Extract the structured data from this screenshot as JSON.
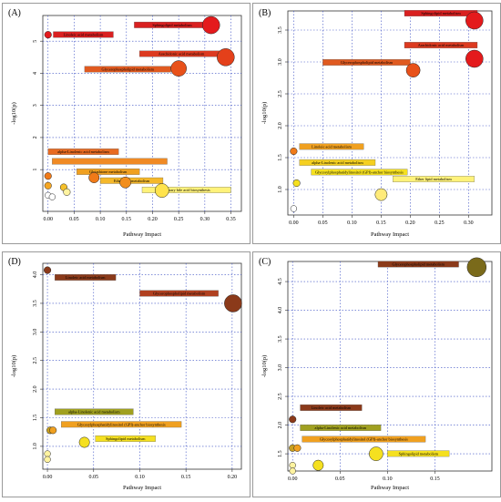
{
  "chart_data": [
    {
      "panel_label": "(A)",
      "type": "scatter",
      "xlabel": "Pathway Impact",
      "ylabel": "-log10(p)",
      "xlim": [
        -0.01,
        0.37
      ],
      "ylim": [
        -0.3,
        5.8
      ],
      "xticks": [
        0.0,
        0.05,
        0.1,
        0.15,
        0.2,
        0.25,
        0.3,
        0.35
      ],
      "xtick_labels": [
        "0.00",
        "0.05",
        "0.10",
        "0.15",
        "0.20",
        "0.25",
        "0.30",
        "0.35"
      ],
      "yticks": [
        1,
        2,
        3,
        4,
        5
      ],
      "ytick_labels": [
        "1",
        "2",
        "3",
        "4",
        "5"
      ],
      "points": [
        {
          "x": 0.312,
          "y": 5.5,
          "size": 5,
          "color": "#e41a1c"
        },
        {
          "x": 0.0,
          "y": 5.2,
          "size": 2,
          "color": "#e41a1c"
        },
        {
          "x": 0.34,
          "y": 4.5,
          "size": 5,
          "color": "#e4401a"
        },
        {
          "x": 0.25,
          "y": 4.15,
          "size": 4.5,
          "color": "#e8511a"
        },
        {
          "x": 0.0,
          "y": 0.8,
          "size": 2,
          "color": "#f07a18"
        },
        {
          "x": 0.0,
          "y": 0.5,
          "size": 2,
          "color": "#f5a623"
        },
        {
          "x": 0.088,
          "y": 0.75,
          "size": 3,
          "color": "#f07a18"
        },
        {
          "x": 0.148,
          "y": 0.6,
          "size": 3.2,
          "color": "#f28e1c"
        },
        {
          "x": 0.218,
          "y": 0.35,
          "size": 4,
          "color": "#ffe34d"
        },
        {
          "x": 0.03,
          "y": 0.45,
          "size": 2,
          "color": "#f5c02a"
        },
        {
          "x": 0.036,
          "y": 0.3,
          "size": 2,
          "color": "#fff3a0"
        },
        {
          "x": 0.0,
          "y": 0.2,
          "size": 1.8,
          "color": "#ffffff"
        },
        {
          "x": 0.008,
          "y": 0.15,
          "size": 1.8,
          "color": "#ffffff"
        }
      ],
      "labels": [
        {
          "text": "Sphingolipid metabolism",
          "x": 0.165,
          "y": 5.5,
          "w": 0.145,
          "color": "#d92020"
        },
        {
          "text": "Linoleic acid metabolism",
          "x": 0.01,
          "y": 5.2,
          "w": 0.115,
          "color": "#d92020"
        },
        {
          "text": "Arachidonic acid metabolism",
          "x": 0.175,
          "y": 4.6,
          "w": 0.16,
          "color": "#dc3a20"
        },
        {
          "text": "Glycerophospholipid metabolism",
          "x": 0.07,
          "y": 4.12,
          "w": 0.165,
          "color": "#e05a20"
        },
        {
          "text": "alpha-Linolenic acid metabolism",
          "x": 0.0,
          "y": 1.55,
          "w": 0.135,
          "color": "#e86a20"
        },
        {
          "text": "",
          "x": 0.008,
          "y": 1.25,
          "w": 0.22,
          "color": "#f08a24"
        },
        {
          "text": "Glutathione metabolism",
          "x": 0.055,
          "y": 0.93,
          "w": 0.12,
          "color": "#f0a020"
        },
        {
          "text": "Ether lipid metabolism",
          "x": 0.1,
          "y": 0.65,
          "w": 0.12,
          "color": "#f5b82a"
        },
        {
          "text": "Primary bile acid biosynthesis",
          "x": 0.18,
          "y": 0.36,
          "w": 0.17,
          "color": "#fff27a"
        }
      ]
    },
    {
      "panel_label": "(B)",
      "type": "scatter",
      "xlabel": "Pathway Impact",
      "ylabel": "-log10(p)",
      "xlim": [
        -0.01,
        0.34
      ],
      "ylim": [
        0.6,
        3.8
      ],
      "xticks": [
        0.0,
        0.05,
        0.1,
        0.15,
        0.2,
        0.25,
        0.3
      ],
      "xtick_labels": [
        "0.00",
        "0.05",
        "0.10",
        "0.15",
        "0.20",
        "0.25",
        "0.30"
      ],
      "yticks": [
        1.0,
        1.5,
        2.0,
        2.5,
        3.0,
        3.5
      ],
      "ytick_labels": [
        "1.0",
        "1.5",
        "2.0",
        "2.5",
        "3.0",
        "3.5"
      ],
      "points": [
        {
          "x": 0.31,
          "y": 3.65,
          "size": 5,
          "color": "#e41a1c"
        },
        {
          "x": 0.31,
          "y": 3.05,
          "size": 5,
          "color": "#e41a1c"
        },
        {
          "x": 0.205,
          "y": 2.87,
          "size": 4,
          "color": "#e8511a"
        },
        {
          "x": 0.0,
          "y": 1.6,
          "size": 2,
          "color": "#f07a18"
        },
        {
          "x": 0.005,
          "y": 1.1,
          "size": 2,
          "color": "#f5e020"
        },
        {
          "x": 0.15,
          "y": 0.92,
          "size": 3.5,
          "color": "#ffeb7a"
        },
        {
          "x": 0.0,
          "y": 0.7,
          "size": 1.8,
          "color": "#ffffff"
        }
      ],
      "labels": [
        {
          "text": "Sphingolipid metabolism",
          "x": 0.19,
          "y": 3.76,
          "w": 0.125,
          "color": "#d92020"
        },
        {
          "text": "Arachidonic acid metabolism",
          "x": 0.19,
          "y": 3.26,
          "w": 0.125,
          "color": "#dc3a20"
        },
        {
          "text": "Glycerophospholipid metabolism",
          "x": 0.05,
          "y": 2.99,
          "w": 0.15,
          "color": "#e05a20"
        },
        {
          "text": "Linoleic acid metabolism",
          "x": 0.01,
          "y": 1.67,
          "w": 0.11,
          "color": "#f0a020"
        },
        {
          "text": "alpha-Linolenic acid metabolism",
          "x": 0.01,
          "y": 1.42,
          "w": 0.13,
          "color": "#f5d020"
        },
        {
          "text": "Glycosylphosphatidylinositol (GPI)-anchor biosynthesis",
          "x": 0.03,
          "y": 1.27,
          "w": 0.165,
          "color": "#f5e020"
        },
        {
          "text": "Ether lipid metabolism",
          "x": 0.17,
          "y": 1.16,
          "w": 0.14,
          "color": "#fff27a"
        }
      ]
    },
    {
      "panel_label": "(D)",
      "type": "scatter",
      "xlabel": "Pathway Impact",
      "ylabel": "-log10(p)",
      "xlim": [
        -0.005,
        0.21
      ],
      "ylim": [
        0.6,
        4.2
      ],
      "xticks": [
        0.0,
        0.05,
        0.1,
        0.15,
        0.2
      ],
      "xtick_labels": [
        "0.00",
        "0.05",
        "0.10",
        "0.15",
        "0.20"
      ],
      "yticks": [
        1.0,
        1.5,
        2.0,
        2.5,
        3.0,
        3.5,
        4.0
      ],
      "ytick_labels": [
        "1.0",
        "1.5",
        "2.0",
        "2.5",
        "3.0",
        "3.5",
        "4.0"
      ],
      "points": [
        {
          "x": 0.0,
          "y": 4.08,
          "size": 2,
          "color": "#8b3a1a"
        },
        {
          "x": 0.201,
          "y": 3.5,
          "size": 5,
          "color": "#8b3a1a"
        },
        {
          "x": 0.003,
          "y": 1.28,
          "size": 2,
          "color": "#c8a020"
        },
        {
          "x": 0.006,
          "y": 1.28,
          "size": 2,
          "color": "#f0a020"
        },
        {
          "x": 0.04,
          "y": 1.07,
          "size": 3,
          "color": "#f5e020"
        },
        {
          "x": 0.0,
          "y": 0.87,
          "size": 1.8,
          "color": "#fff3a0"
        },
        {
          "x": 0.0,
          "y": 0.77,
          "size": 1.8,
          "color": "#fff3a0"
        }
      ],
      "labels": [
        {
          "text": "Linoleic acid metabolism",
          "x": 0.008,
          "y": 3.95,
          "w": 0.066,
          "color": "#8b3a1a"
        },
        {
          "text": "Glycerophospholipid metabolism",
          "x": 0.1,
          "y": 3.67,
          "w": 0.085,
          "color": "#b04020"
        },
        {
          "text": "alpha-Linolenic acid metabolism",
          "x": 0.008,
          "y": 1.6,
          "w": 0.085,
          "color": "#a0a020"
        },
        {
          "text": "Glycosylphosphatidylinositol (GPI)-anchor biosynthesis",
          "x": 0.015,
          "y": 1.38,
          "w": 0.13,
          "color": "#f0a020"
        },
        {
          "text": "Sphingolipid metabolism",
          "x": 0.052,
          "y": 1.13,
          "w": 0.065,
          "color": "#f5e020"
        }
      ]
    },
    {
      "panel_label": "(C)",
      "type": "scatter",
      "xlabel": "Pathway Impact",
      "ylabel": "-log10(p)",
      "xlim": [
        -0.005,
        0.21
      ],
      "ylim": [
        1.2,
        4.85
      ],
      "xticks": [
        0.0,
        0.05,
        0.1,
        0.15
      ],
      "xtick_labels": [
        "0.00",
        "0.05",
        "0.10",
        "0.15"
      ],
      "yticks": [
        1.5,
        2.0,
        2.5,
        3.0,
        3.5,
        4.0,
        4.5
      ],
      "ytick_labels": [
        "1.5",
        "2.0",
        "2.5",
        "3.0",
        "3.5",
        "4.0",
        "4.5"
      ],
      "points": [
        {
          "x": 0.194,
          "y": 4.75,
          "size": 5.5,
          "color": "#7a6a1a"
        },
        {
          "x": 0.0,
          "y": 2.1,
          "size": 2,
          "color": "#8b3a1a"
        },
        {
          "x": 0.0,
          "y": 1.6,
          "size": 2,
          "color": "#c8a020"
        },
        {
          "x": 0.005,
          "y": 1.6,
          "size": 2,
          "color": "#f0a020"
        },
        {
          "x": 0.088,
          "y": 1.5,
          "size": 4,
          "color": "#f5e020"
        },
        {
          "x": 0.027,
          "y": 1.3,
          "size": 3,
          "color": "#f5e020"
        },
        {
          "x": 0.0,
          "y": 1.3,
          "size": 1.8,
          "color": "#fff3a0"
        },
        {
          "x": 0.0,
          "y": 1.2,
          "size": 1.8,
          "color": "#fff3a0"
        }
      ],
      "labels": [
        {
          "text": "Glycerophospholipid metabolism",
          "x": 0.09,
          "y": 4.8,
          "w": 0.085,
          "color": "#8b3a1a"
        },
        {
          "text": "Linoleic acid metabolism",
          "x": 0.008,
          "y": 2.3,
          "w": 0.065,
          "color": "#8b3a1a"
        },
        {
          "text": "alpha-Linolenic acid metabolism",
          "x": 0.008,
          "y": 1.95,
          "w": 0.085,
          "color": "#a0a020"
        },
        {
          "text": "Glycosylphosphatidylinositol (GPI)-anchor biosynthesis",
          "x": 0.01,
          "y": 1.75,
          "w": 0.13,
          "color": "#f0a020"
        },
        {
          "text": "Sphingolipid metabolism",
          "x": 0.1,
          "y": 1.5,
          "w": 0.065,
          "color": "#f5e020"
        }
      ]
    }
  ]
}
